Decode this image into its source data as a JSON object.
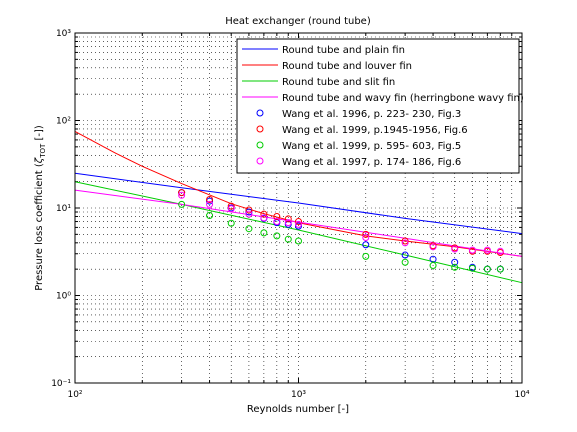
{
  "chart_data": {
    "type": "line",
    "title": "Heat exchanger (round tube)",
    "xlabel": "Reynolds number [-]",
    "ylabel_parts": {
      "pre": "Pressure loss coefficient (",
      "zeta": "ζ",
      "sub": "TOT",
      "post": " [-])"
    },
    "xscale": "log",
    "yscale": "log",
    "xlim": [
      100,
      10000
    ],
    "ylim": [
      0.1,
      1000
    ],
    "grid": true,
    "legend_position": "top-right",
    "x_ticks": [
      {
        "value": 100,
        "label": "10²"
      },
      {
        "value": 1000,
        "label": "10³"
      },
      {
        "value": 10000,
        "label": "10⁴"
      }
    ],
    "y_ticks": [
      {
        "value": 0.1,
        "label": "10⁻¹"
      },
      {
        "value": 1,
        "label": "10⁰"
      },
      {
        "value": 10,
        "label": "10¹"
      },
      {
        "value": 100,
        "label": "10²"
      },
      {
        "value": 1000,
        "label": "10³"
      }
    ],
    "line_series": [
      {
        "name": "Round tube and plain fin",
        "color": "#0000ff",
        "x": [
          100,
          300,
          1000,
          3000,
          10000
        ],
        "y": [
          25,
          17,
          11.4,
          7.6,
          5.1
        ]
      },
      {
        "name": "Round tube and louver fin",
        "color": "#ff0000",
        "x": [
          100,
          150,
          200,
          300,
          500,
          700,
          1000,
          2000,
          3000,
          5000,
          10000
        ],
        "y": [
          75,
          43,
          30,
          19,
          11.2,
          8.6,
          6.8,
          4.8,
          4.2,
          3.6,
          2.8
        ]
      },
      {
        "name": "Round tube and slit fin",
        "color": "#00cc00",
        "x": [
          100,
          300,
          1000,
          3000,
          10000
        ],
        "y": [
          20,
          11,
          5.6,
          2.9,
          1.4
        ]
      },
      {
        "name": "Round tube and wavy fin (herringbone wavy fin)",
        "color": "#ff00ff",
        "x": [
          100,
          300,
          1000,
          3000,
          10000
        ],
        "y": [
          16,
          11,
          6.9,
          4.5,
          2.8
        ]
      }
    ],
    "marker_series": [
      {
        "name": "Wang et al. 1996, p.  223-  230, Fig.3",
        "color": "#0000ff",
        "x": [
          300,
          400,
          500,
          600,
          700,
          800,
          900,
          1000,
          2000,
          3000,
          4000,
          5000,
          6000,
          7000,
          8000
        ],
        "y": [
          15,
          12,
          10,
          9,
          7.6,
          6.8,
          6.5,
          6.2,
          3.8,
          2.9,
          2.6,
          2.4,
          2.1,
          2.0,
          2.0
        ]
      },
      {
        "name": "Wang et al. 1999, p.1945-1956, Fig.6",
        "color": "#ff0000",
        "x": [
          300,
          400,
          500,
          600,
          700,
          800,
          900,
          1000,
          2000,
          3000,
          4000,
          5000,
          6000,
          7000,
          8000
        ],
        "y": [
          15,
          12.5,
          10.5,
          9.5,
          8.5,
          8,
          7.5,
          7,
          5,
          4.2,
          3.7,
          3.5,
          3.2,
          3.2,
          3.1
        ]
      },
      {
        "name": "Wang et al. 1999, p.  595-  603, Fig.5",
        "color": "#00cc00",
        "x": [
          300,
          400,
          500,
          600,
          700,
          800,
          900,
          1000,
          2000,
          3000,
          4000,
          5000,
          6000,
          7000,
          8000
        ],
        "y": [
          11,
          8.2,
          6.7,
          5.8,
          5.2,
          4.8,
          4.4,
          4.2,
          2.8,
          2.4,
          2.2,
          2.1,
          2.05,
          2.0,
          2.0
        ]
      },
      {
        "name": "Wang et al. 1997, p.  174-  186, Fig.6",
        "color": "#ff00ff",
        "x": [
          300,
          400,
          500,
          600,
          700,
          800,
          900,
          1000,
          2000,
          3000,
          4000,
          5000,
          6000,
          7000,
          8000
        ],
        "y": [
          14,
          11,
          9.8,
          8.5,
          7.7,
          7,
          6.8,
          6.5,
          4.6,
          4,
          3.6,
          3.4,
          3.3,
          3.3,
          3.2
        ]
      }
    ]
  }
}
